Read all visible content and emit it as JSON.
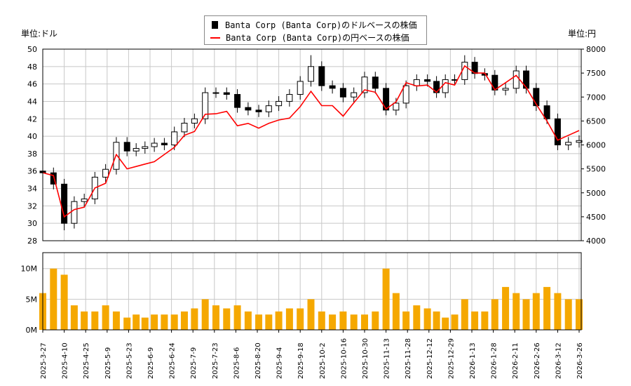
{
  "units": {
    "left": "単位:ドル",
    "right": "単位:円"
  },
  "legend": [
    {
      "label": "Banta Corp (Banta Corp)のドルベースの株価",
      "icon": "black-square",
      "color": "#000000"
    },
    {
      "label": "Banta Corp (Banta Corp)の円ベースの株価",
      "icon": "red-line",
      "color": "#ff0000"
    }
  ],
  "chart_data": [
    {
      "type": "candlestick+line",
      "yaxis_left": {
        "ticks": [
          "28",
          "30",
          "32",
          "34",
          "36",
          "38",
          "40",
          "42",
          "44",
          "46",
          "48",
          "50"
        ],
        "range": [
          28,
          50
        ]
      },
      "yaxis_right": {
        "ticks": [
          "4000",
          "4500",
          "5000",
          "5500",
          "6000",
          "6500",
          "7000",
          "7500",
          "8000"
        ],
        "range": [
          4000,
          8000
        ]
      },
      "grid": true,
      "legend_placement": "top-center",
      "dates": [
        "2025-03-27",
        "2025-04-03",
        "2025-04-10",
        "2025-04-17",
        "2025-04-24",
        "2025-05-01",
        "2025-05-08",
        "2025-05-15",
        "2025-05-22",
        "2025-05-29",
        "2025-06-05",
        "2025-06-12",
        "2025-06-19",
        "2025-06-26",
        "2025-07-03",
        "2025-07-10",
        "2025-07-17",
        "2025-07-24",
        "2025-07-31",
        "2025-08-07",
        "2025-08-14",
        "2025-08-21",
        "2025-08-28",
        "2025-09-04",
        "2025-09-11",
        "2025-09-18",
        "2025-09-25",
        "2025-10-02",
        "2025-10-09",
        "2025-10-16",
        "2025-10-23",
        "2025-10-30",
        "2025-11-06",
        "2025-11-13",
        "2025-11-20",
        "2025-11-27",
        "2025-12-04",
        "2025-12-11",
        "2025-12-18",
        "2025-12-25",
        "2026-01-01",
        "2026-01-08",
        "2026-01-15",
        "2026-01-22",
        "2026-01-29",
        "2026-02-05",
        "2026-02-12",
        "2026-02-19",
        "2026-02-26",
        "2026-03-05",
        "2026-03-12",
        "2026-03-19",
        "2026-03-26"
      ],
      "usd": {
        "open": [
          36.0,
          35.8,
          34.5,
          30.0,
          32.5,
          32.8,
          35.3,
          36.2,
          39.3,
          38.3,
          38.6,
          38.8,
          39.2,
          39.0,
          40.5,
          41.5,
          42.0,
          45.0,
          45.0,
          44.8,
          43.3,
          43.0,
          42.8,
          43.5,
          44.0,
          44.8,
          46.3,
          48.0,
          45.8,
          45.5,
          44.5,
          45.0,
          46.8,
          45.5,
          43.0,
          43.8,
          45.8,
          46.5,
          46.3,
          45.0,
          46.5,
          46.5,
          48.5,
          47.2,
          47.0,
          45.3,
          45.5,
          47.5,
          45.5,
          43.5,
          42.0,
          39.0,
          39.3
        ],
        "high": [
          36.6,
          36.4,
          35.1,
          33.1,
          33.4,
          35.9,
          36.8,
          39.9,
          39.9,
          39.2,
          39.4,
          39.8,
          39.8,
          41.1,
          42.1,
          42.6,
          45.6,
          45.6,
          45.6,
          45.4,
          43.9,
          43.6,
          44.1,
          44.6,
          45.4,
          46.9,
          49.3,
          48.6,
          46.4,
          46.1,
          45.6,
          47.4,
          47.4,
          46.1,
          44.4,
          46.4,
          47.1,
          47.1,
          46.9,
          47.1,
          47.1,
          49.3,
          49.1,
          47.8,
          47.6,
          46.1,
          48.1,
          48.1,
          46.1,
          44.1,
          42.6,
          39.9,
          40.1
        ],
        "low": [
          35.2,
          33.9,
          29.2,
          29.4,
          31.9,
          32.2,
          34.7,
          35.6,
          37.7,
          37.7,
          38.0,
          38.2,
          38.4,
          38.4,
          39.9,
          40.9,
          41.4,
          44.4,
          44.2,
          42.7,
          42.4,
          42.2,
          42.2,
          42.9,
          43.4,
          44.2,
          45.7,
          45.2,
          44.9,
          43.9,
          43.9,
          44.4,
          44.9,
          42.4,
          42.4,
          43.2,
          45.2,
          45.7,
          44.4,
          44.4,
          45.9,
          45.9,
          46.6,
          46.4,
          44.7,
          44.7,
          44.9,
          44.9,
          42.9,
          41.4,
          38.4,
          38.4,
          38.7
        ],
        "close": [
          35.8,
          34.5,
          30.0,
          32.5,
          32.8,
          35.3,
          36.2,
          39.3,
          38.3,
          38.6,
          38.8,
          39.2,
          39.0,
          40.5,
          41.5,
          42.0,
          45.0,
          45.0,
          44.8,
          43.3,
          43.0,
          42.8,
          43.5,
          44.0,
          44.8,
          46.3,
          48.0,
          45.8,
          45.5,
          44.5,
          45.0,
          46.8,
          45.5,
          43.0,
          43.8,
          45.8,
          46.5,
          46.3,
          45.0,
          46.5,
          46.5,
          48.5,
          47.2,
          47.0,
          45.3,
          45.5,
          47.5,
          45.5,
          43.5,
          42.0,
          39.0,
          39.3,
          39.5
        ]
      },
      "jpy_close": [
        5420,
        5360,
        4500,
        4650,
        4700,
        5100,
        5200,
        5800,
        5500,
        5550,
        5600,
        5650,
        5800,
        5950,
        6200,
        6280,
        6640,
        6650,
        6700,
        6400,
        6450,
        6350,
        6450,
        6520,
        6560,
        6800,
        7120,
        6820,
        6820,
        6600,
        6880,
        7150,
        7100,
        6750,
        6900,
        7300,
        7230,
        7250,
        7100,
        7300,
        7250,
        7650,
        7500,
        7500,
        7150,
        7300,
        7450,
        7200,
        6850,
        6500,
        6100,
        6200,
        6300
      ]
    },
    {
      "type": "bar",
      "yaxis": {
        "ticks": [
          "0M",
          "5M",
          "10M"
        ],
        "range": [
          0,
          12.6
        ],
        "unit": "M"
      },
      "volume_millions": [
        6,
        10,
        9,
        4,
        3,
        3,
        4,
        3,
        2,
        2.5,
        2,
        2.5,
        2.5,
        2.5,
        3,
        3.5,
        5,
        4,
        3.5,
        4,
        3,
        2.5,
        2.5,
        3,
        3.5,
        3.5,
        5,
        3,
        2.5,
        3,
        2.5,
        2.5,
        3,
        10,
        6,
        3,
        4,
        3.5,
        3,
        2,
        2.5,
        5,
        3,
        3,
        5,
        7,
        6,
        5,
        6,
        7,
        6,
        5,
        5
      ],
      "bar_color": "#f5a800"
    }
  ],
  "xaxis": {
    "ticks": [
      "2025-3-27",
      "2025-4-10",
      "2025-4-25",
      "2025-5-9",
      "2025-5-23",
      "2025-6-9",
      "2025-6-24",
      "2025-7-9",
      "2025-7-23",
      "2025-8-6",
      "2025-8-20",
      "2025-9-4",
      "2025-9-18",
      "2025-10-2",
      "2025-10-16",
      "2025-10-30",
      "2025-11-13",
      "2025-11-28",
      "2025-12-12",
      "2025-12-29",
      "2026-1-13",
      "2026-1-28",
      "2026-2-11",
      "2026-2-26",
      "2026-3-12",
      "2026-3-26"
    ]
  }
}
